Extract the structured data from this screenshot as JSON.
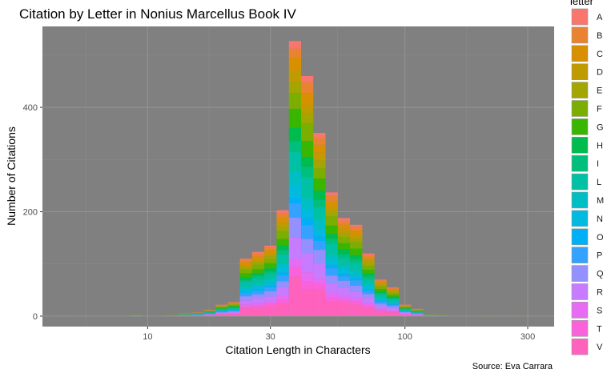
{
  "chart_data": {
    "type": "bar",
    "stacked": true,
    "title": "Citation by Letter in Nonius Marcellus Book IV",
    "xlabel": "Citation Length in Characters",
    "ylabel": "Number of Citations",
    "caption": "Source: Eva Carrara",
    "x_scale": "log10",
    "xlim": [
      3.9,
      380
    ],
    "x_ticks": [
      10,
      30,
      100,
      300
    ],
    "y_ticks": [
      0,
      200,
      400
    ],
    "ylim": [
      -20,
      555
    ],
    "grid": true,
    "legend": {
      "title": "letter",
      "position": "right"
    },
    "colors": {
      "A": "#F8766D",
      "B": "#EA8331",
      "C": "#D89000",
      "D": "#C09B00",
      "E": "#A3A500",
      "F": "#7CAE00",
      "G": "#39B600",
      "H": "#00BB4E",
      "I": "#00BF7D",
      "L": "#00C1A3",
      "M": "#00BFC4",
      "N": "#00BAE0",
      "O": "#00B0F6",
      "P": "#35A2FF",
      "Q": "#9590FF",
      "R": "#C77CFF",
      "S": "#E76BF3",
      "T": "#FA62DB",
      "V": "#FF62BC"
    },
    "bins": [
      {
        "x_center": 4.7,
        "total": 2
      },
      {
        "x_center": 5.2,
        "total": 0
      },
      {
        "x_center": 5.8,
        "total": 0
      },
      {
        "x_center": 6.5,
        "total": 0
      },
      {
        "x_center": 7.2,
        "total": 0
      },
      {
        "x_center": 8.1,
        "total": 0
      },
      {
        "x_center": 9.0,
        "total": 3
      },
      {
        "x_center": 10.0,
        "total": 0
      },
      {
        "x_center": 11.2,
        "total": 0
      },
      {
        "x_center": 12.5,
        "total": 3
      },
      {
        "x_center": 14.0,
        "total": 5
      },
      {
        "x_center": 15.6,
        "total": 7
      },
      {
        "x_center": 17.4,
        "total": 12
      },
      {
        "x_center": 19.4,
        "total": 22
      },
      {
        "x_center": 21.6,
        "total": 27
      },
      {
        "x_center": 24.1,
        "total": 110
      },
      {
        "x_center": 26.9,
        "total": 123
      },
      {
        "x_center": 30.0,
        "total": 135
      },
      {
        "x_center": 33.5,
        "total": 203
      },
      {
        "x_center": 37.4,
        "total": 527
      },
      {
        "x_center": 41.7,
        "total": 460
      },
      {
        "x_center": 46.5,
        "total": 351
      },
      {
        "x_center": 51.9,
        "total": 237
      },
      {
        "x_center": 57.9,
        "total": 188
      },
      {
        "x_center": 64.6,
        "total": 175
      },
      {
        "x_center": 72.1,
        "total": 120
      },
      {
        "x_center": 80.4,
        "total": 70
      },
      {
        "x_center": 89.7,
        "total": 55
      },
      {
        "x_center": 100.0,
        "total": 22
      },
      {
        "x_center": 111.6,
        "total": 14
      },
      {
        "x_center": 124.5,
        "total": 4
      },
      {
        "x_center": 138.9,
        "total": 3
      },
      {
        "x_center": 155.0,
        "total": 0
      },
      {
        "x_center": 172.9,
        "total": 0
      },
      {
        "x_center": 192.9,
        "total": 0
      },
      {
        "x_center": 215.2,
        "total": 2
      },
      {
        "x_center": 240.1,
        "total": 0
      },
      {
        "x_center": 267.8,
        "total": 2
      }
    ]
  }
}
